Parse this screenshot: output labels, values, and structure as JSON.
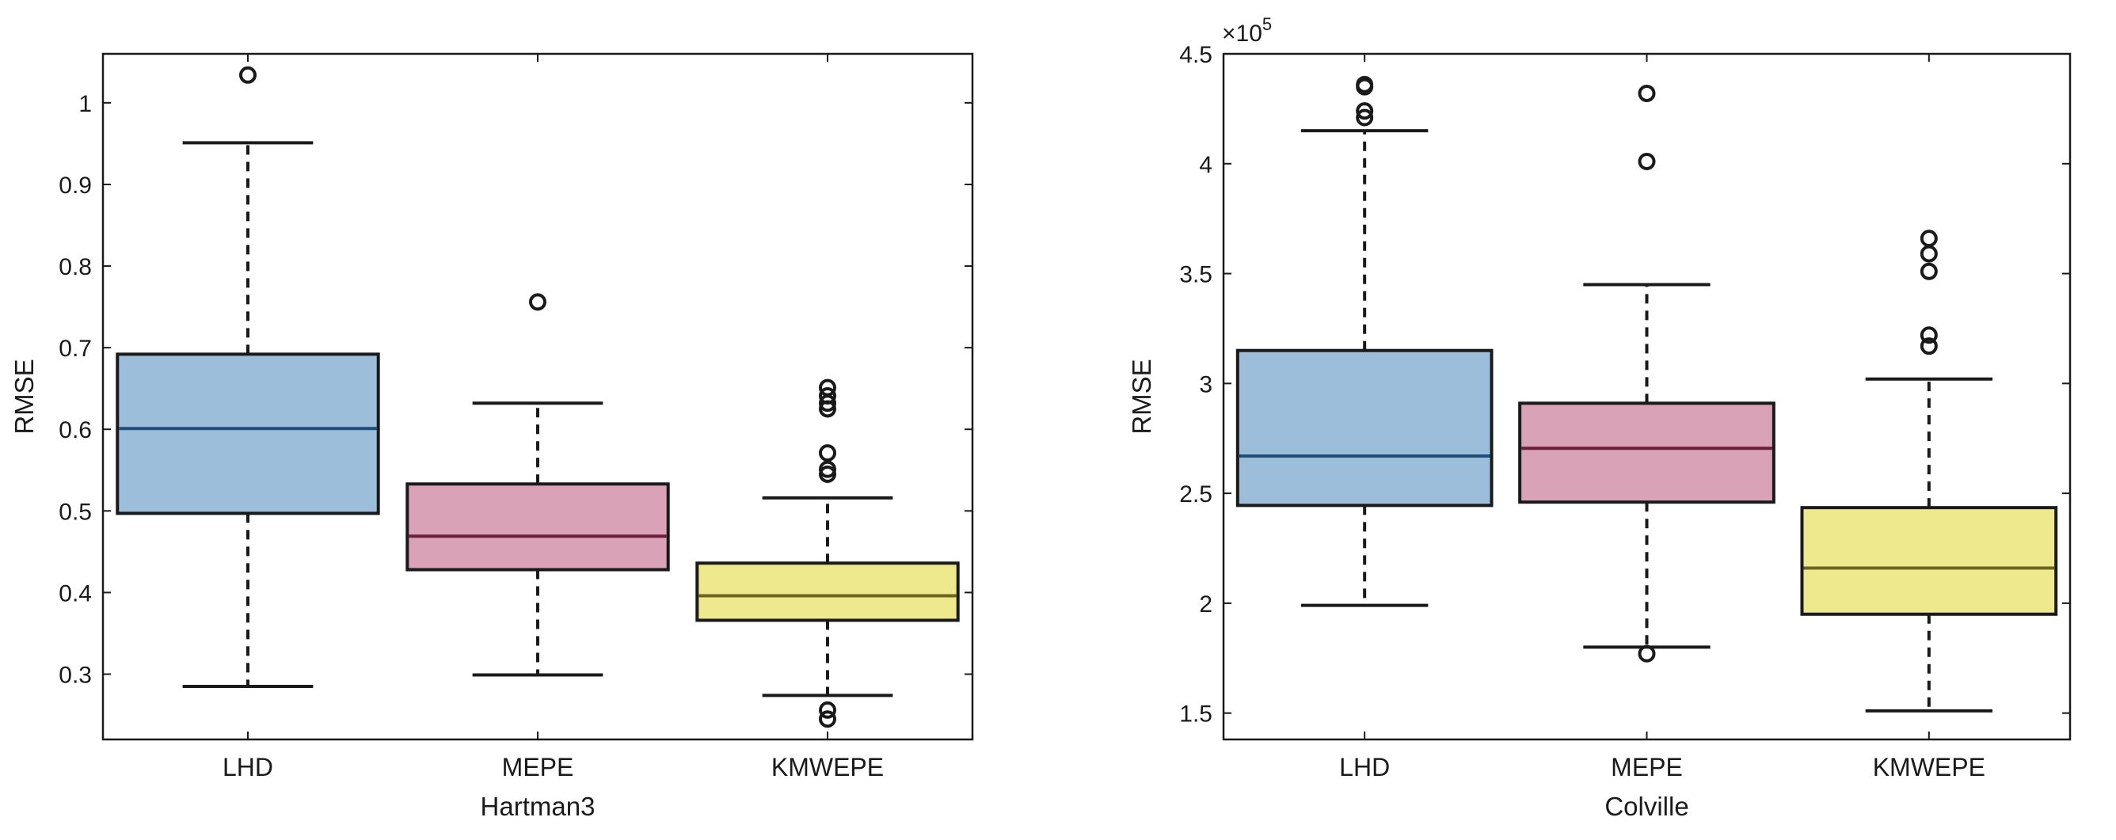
{
  "chart_data": [
    {
      "type": "box",
      "title": "",
      "xlabel": "Hartman3",
      "ylabel": "RMSE",
      "exponent_label": "",
      "ylim": [
        0.22,
        1.06
      ],
      "yticks": [
        0.3,
        0.4,
        0.5,
        0.6,
        0.7,
        0.8,
        0.9,
        1
      ],
      "ytick_labels": [
        "0.3",
        "0.4",
        "0.5",
        "0.6",
        "0.7",
        "0.8",
        "0.9",
        "1"
      ],
      "grid": false,
      "categories": [
        "LHD",
        "MEPE",
        "KMWEPE"
      ],
      "boxes": [
        {
          "category": "LHD",
          "whisker_low": 0.285,
          "q1": 0.497,
          "median": 0.601,
          "q3": 0.692,
          "whisker_high": 0.951,
          "outliers": [
            1.034
          ],
          "color": "#9dbedb"
        },
        {
          "category": "MEPE",
          "whisker_low": 0.299,
          "q1": 0.428,
          "median": 0.469,
          "q3": 0.533,
          "whisker_high": 0.632,
          "outliers": [
            0.756
          ],
          "color": "#d9a2b6"
        },
        {
          "category": "KMWEPE",
          "whisker_low": 0.274,
          "q1": 0.366,
          "median": 0.396,
          "q3": 0.436,
          "whisker_high": 0.516,
          "outliers": [
            0.245,
            0.256,
            0.545,
            0.551,
            0.571,
            0.625,
            0.632,
            0.641,
            0.651
          ],
          "color": "#ede98c"
        }
      ]
    },
    {
      "type": "box",
      "title": "",
      "xlabel": "Colville",
      "ylabel": "RMSE",
      "exponent_label": "×10",
      "exponent_power": "5",
      "ylim": [
        1.38,
        4.5
      ],
      "yticks": [
        1.5,
        2,
        2.5,
        3,
        3.5,
        4,
        4.5
      ],
      "ytick_labels": [
        "1.5",
        "2",
        "2.5",
        "3",
        "3.5",
        "4",
        "4.5"
      ],
      "grid": false,
      "categories": [
        "LHD",
        "MEPE",
        "KMWEPE"
      ],
      "boxes": [
        {
          "category": "LHD",
          "whisker_low": 1.99,
          "q1": 2.445,
          "median": 2.67,
          "q3": 3.15,
          "whisker_high": 4.15,
          "outliers": [
            4.21,
            4.24,
            4.35,
            4.36
          ],
          "color": "#9dbedb"
        },
        {
          "category": "MEPE",
          "whisker_low": 1.8,
          "q1": 2.46,
          "median": 2.705,
          "q3": 2.91,
          "whisker_high": 3.45,
          "outliers": [
            1.77,
            4.01,
            4.32
          ],
          "color": "#d9a2b6"
        },
        {
          "category": "KMWEPE",
          "whisker_low": 1.51,
          "q1": 1.95,
          "median": 2.16,
          "q3": 2.435,
          "whisker_high": 3.02,
          "outliers": [
            3.17,
            3.22,
            3.51,
            3.59,
            3.66
          ],
          "color": "#ede98c"
        }
      ]
    }
  ],
  "style": {
    "median_colors": [
      "#1f4e79",
      "#6b1e38",
      "#6b6422"
    ],
    "axis_color": "#1a1a1a"
  }
}
